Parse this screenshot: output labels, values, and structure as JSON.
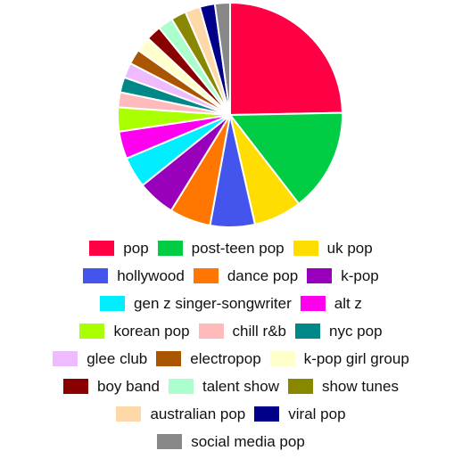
{
  "chart_data": {
    "type": "pie",
    "title": "",
    "legend_placement": "bottom",
    "slices": [
      {
        "label": "pop",
        "value": 25.0,
        "color": "#ff0044"
      },
      {
        "label": "post-teen pop",
        "value": 15.0,
        "color": "#00cc44"
      },
      {
        "label": "uk pop",
        "value": 7.0,
        "color": "#ffdd00"
      },
      {
        "label": "hollywood",
        "value": 6.5,
        "color": "#4455ee"
      },
      {
        "label": "dance pop",
        "value": 6.0,
        "color": "#ff7700"
      },
      {
        "label": "k-pop",
        "value": 5.5,
        "color": "#9900bb"
      },
      {
        "label": "gen z singer-songwriter",
        "value": 4.5,
        "color": "#00eeff"
      },
      {
        "label": "alt z",
        "value": 4.0,
        "color": "#ff00ee"
      },
      {
        "label": "korean pop",
        "value": 3.5,
        "color": "#aaff00"
      },
      {
        "label": "chill r&b",
        "value": 2.2,
        "color": "#ffbbbb"
      },
      {
        "label": "nyc pop",
        "value": 2.2,
        "color": "#008888"
      },
      {
        "label": "glee club",
        "value": 2.2,
        "color": "#eebbff"
      },
      {
        "label": "electropop",
        "value": 2.2,
        "color": "#aa5500"
      },
      {
        "label": "k-pop girl group",
        "value": 2.2,
        "color": "#ffffcc"
      },
      {
        "label": "boy band",
        "value": 2.2,
        "color": "#880000"
      },
      {
        "label": "talent show",
        "value": 2.2,
        "color": "#aaffcc"
      },
      {
        "label": "show tunes",
        "value": 2.2,
        "color": "#888800"
      },
      {
        "label": "australian pop",
        "value": 2.2,
        "color": "#ffd8a8"
      },
      {
        "label": "viral pop",
        "value": 2.2,
        "color": "#000088"
      },
      {
        "label": "social media pop",
        "value": 2.2,
        "color": "#888888"
      }
    ]
  },
  "legend_rows": [
    [
      0,
      1,
      2
    ],
    [
      3,
      4,
      5
    ],
    [
      6,
      7
    ],
    [
      8,
      9,
      10
    ],
    [
      11,
      12,
      13
    ],
    [
      14,
      15,
      16
    ],
    [
      17,
      18
    ],
    [
      19
    ]
  ]
}
